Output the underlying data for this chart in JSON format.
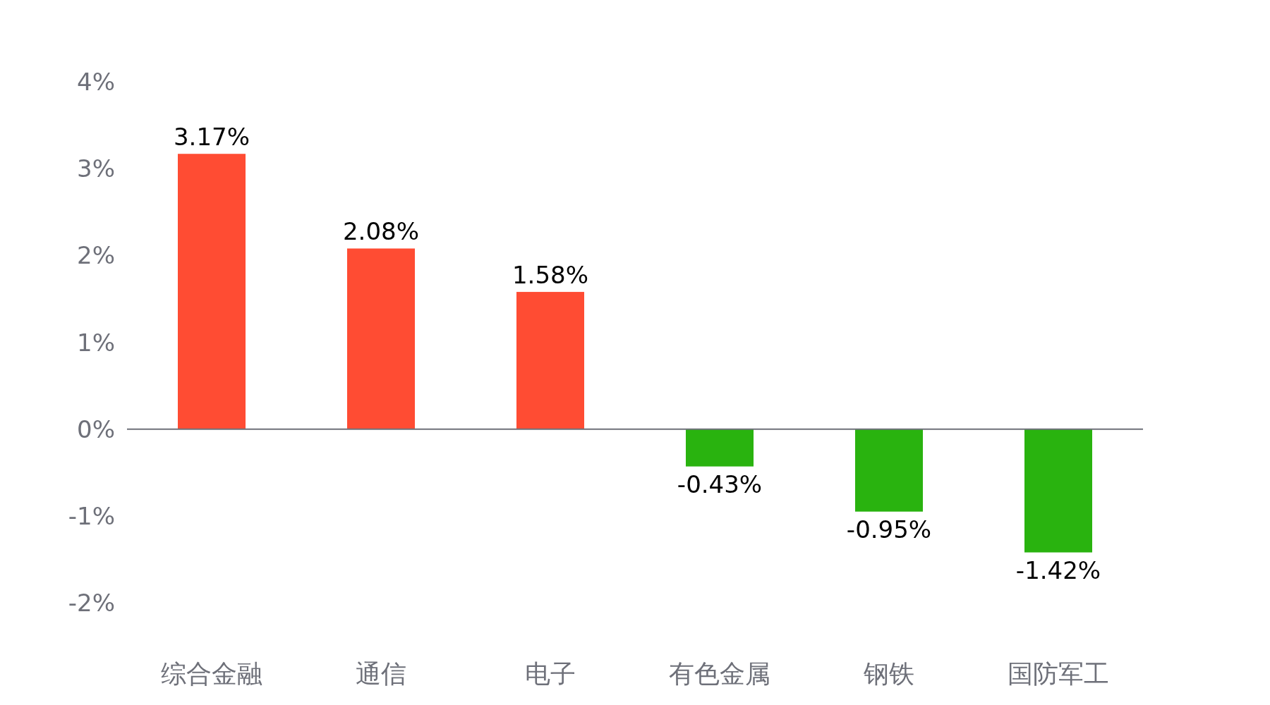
{
  "chart_data": {
    "type": "bar",
    "categories": [
      "综合金融",
      "通信",
      "电子",
      "有色金属",
      "钢铁",
      "国防军工"
    ],
    "values": [
      3.17,
      2.08,
      1.58,
      -0.43,
      -0.95,
      -1.42
    ],
    "colors": [
      "#ff4c33",
      "#ff4c33",
      "#ff4c33",
      "#29b30f",
      "#29b30f",
      "#29b30f"
    ],
    "value_labels": [
      "3.17%",
      "2.08%",
      "1.58%",
      "-0.43%",
      "-0.95%",
      "-1.42%"
    ],
    "ylim": [
      -2,
      4
    ],
    "yticks": [
      {
        "value": -2,
        "label": "-2%"
      },
      {
        "value": -1,
        "label": "-1%"
      },
      {
        "value": 0,
        "label": "0%"
      },
      {
        "value": 1,
        "label": "1%"
      },
      {
        "value": 2,
        "label": "2%"
      },
      {
        "value": 3,
        "label": "3%"
      },
      {
        "value": 4,
        "label": "4%"
      }
    ]
  }
}
